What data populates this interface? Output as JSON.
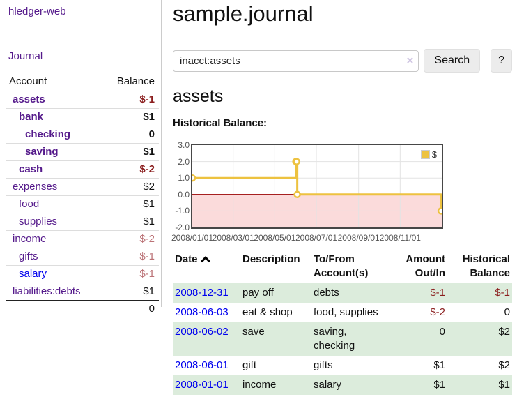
{
  "colors": {
    "link_purple": "#551a8b",
    "link_blue": "#0000ee",
    "negative": "#8b1e1e",
    "negative_light": "#bb7276",
    "row_stripe_green": "#dcecdc",
    "chart_line_gold": "#edc240",
    "chart_negative_region": "#fbdbdb",
    "chart_zero_line": "#990000"
  },
  "sidebar": {
    "app_title": "hledger-web",
    "journal_link": "Journal",
    "header": {
      "account": "Account",
      "balance": "Balance"
    },
    "accounts": [
      {
        "name": "assets",
        "balance": "$-1",
        "level": 1,
        "strong": true,
        "link": "purple",
        "tone": "neg"
      },
      {
        "name": "bank",
        "balance": "$1",
        "level": 2,
        "strong": true,
        "link": "purple",
        "tone": "plain"
      },
      {
        "name": "checking",
        "balance": "0",
        "level": 3,
        "strong": true,
        "link": "purple",
        "tone": "plain"
      },
      {
        "name": "saving",
        "balance": "$1",
        "level": 3,
        "strong": true,
        "link": "purple",
        "tone": "plain"
      },
      {
        "name": "cash",
        "balance": "$-2",
        "level": 2,
        "strong": true,
        "link": "purple",
        "tone": "neg"
      },
      {
        "name": "expenses",
        "balance": "$2",
        "level": 1,
        "strong": false,
        "link": "purple",
        "tone": "plain"
      },
      {
        "name": "food",
        "balance": "$1",
        "level": 2,
        "strong": false,
        "link": "purple",
        "tone": "plain"
      },
      {
        "name": "supplies",
        "balance": "$1",
        "level": 2,
        "strong": false,
        "link": "purple",
        "tone": "plain"
      },
      {
        "name": "income",
        "balance": "$-2",
        "level": 1,
        "strong": false,
        "link": "purple",
        "tone": "neg_light"
      },
      {
        "name": "gifts",
        "balance": "$-1",
        "level": 2,
        "strong": false,
        "link": "purple",
        "tone": "neg_light"
      },
      {
        "name": "salary",
        "balance": "$-1",
        "level": 2,
        "strong": false,
        "link": "blue",
        "tone": "neg_light"
      },
      {
        "name": "liabilities:debts",
        "balance": "$1",
        "level": 1,
        "strong": false,
        "link": "purple",
        "tone": "plain"
      }
    ],
    "total": "0"
  },
  "main": {
    "title": "sample.journal",
    "search": {
      "value": "inacct:assets",
      "clear_icon": "×",
      "button": "Search",
      "help_button": "?"
    },
    "account_heading": "assets",
    "chart_label": "Historical Balance:"
  },
  "chart_data": {
    "type": "line",
    "step": true,
    "title": "Historical Balance:",
    "series": [
      {
        "name": "$",
        "color": "#edc240",
        "x": [
          "2008-01-01",
          "2008-06-01",
          "2008-06-02",
          "2008-06-03",
          "2008-12-31"
        ],
        "values": [
          1,
          2,
          2,
          0,
          -1
        ]
      }
    ],
    "xrange": [
      "2008-01-01",
      "2009-01-01"
    ],
    "ylim": [
      -2,
      3
    ],
    "yticks": [
      "3.0",
      "2.0",
      "1.0",
      "0.0",
      "-1.0",
      "-2.0"
    ],
    "xticks": [
      {
        "label": "2008/01/01",
        "date": "2008-01-01"
      },
      {
        "label": "2008/03/01",
        "date": "2008-03-01"
      },
      {
        "label": "2008/05/01",
        "date": "2008-05-01"
      },
      {
        "label": "2008/07/01",
        "date": "2008-07-01"
      },
      {
        "label": "2008/09/01",
        "date": "2008-09-01"
      },
      {
        "label": "2008/11/01",
        "date": "2008-11-01"
      }
    ],
    "legend": {
      "label": "$",
      "position": "top-right"
    },
    "grid": true,
    "markers": "open-circle"
  },
  "transactions": {
    "headers": {
      "date": "Date",
      "description": "Description",
      "accounts": "To/From Account(s)",
      "amount": "Amount Out/In",
      "balance": "Historical Balance"
    },
    "rows": [
      {
        "date": "2008-12-31",
        "description": "pay off",
        "accounts": "debts",
        "amount": "$-1",
        "balance": "$-1",
        "amount_tone": "neg",
        "balance_tone": "neg"
      },
      {
        "date": "2008-06-03",
        "description": "eat & shop",
        "accounts": "food, supplies",
        "amount": "$-2",
        "balance": "0",
        "amount_tone": "neg",
        "balance_tone": "plain"
      },
      {
        "date": "2008-06-02",
        "description": "save",
        "accounts": "saving, checking",
        "amount": "0",
        "balance": "$2",
        "amount_tone": "plain",
        "balance_tone": "plain"
      },
      {
        "date": "2008-06-01",
        "description": "gift",
        "accounts": "gifts",
        "amount": "$1",
        "balance": "$2",
        "amount_tone": "plain",
        "balance_tone": "plain"
      },
      {
        "date": "2008-01-01",
        "description": "income",
        "accounts": "salary",
        "amount": "$1",
        "balance": "$1",
        "amount_tone": "plain",
        "balance_tone": "plain"
      }
    ]
  }
}
